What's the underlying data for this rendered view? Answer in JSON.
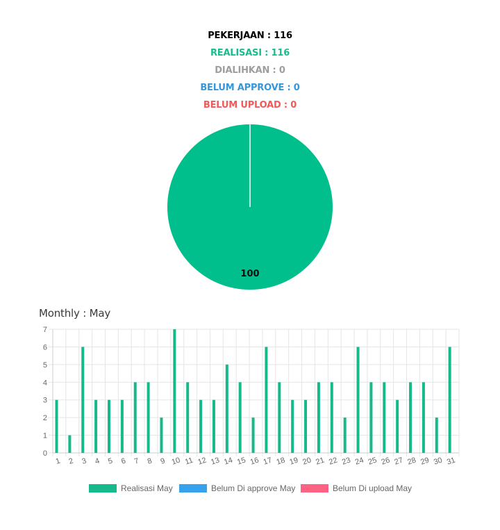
{
  "summary": {
    "pekerjaan": "PEKERJAAN : 116",
    "realisasi": "REALISASI : 116",
    "dialihkan": "DIALIHKAN : 0",
    "belum_approve": "BELUM APPROVE : 0",
    "belum_upload": "BELUM UPLOAD : 0"
  },
  "colors": {
    "pekerjaan": "#000000",
    "realisasi": "#1abc8c",
    "dialihkan": "#9e9e9e",
    "belum_approve": "#3498db",
    "belum_upload": "#f05a5a",
    "pie": "#00bf8c",
    "bar": "#16b98a",
    "approve_swatch": "#36a2eb",
    "upload_swatch": "#ff6384",
    "grid": "#e5e5e5"
  },
  "pie_chart": {
    "type": "pie",
    "slices": [
      {
        "value": 100,
        "label": "100"
      }
    ]
  },
  "monthly": {
    "title": "Monthly : May"
  },
  "chart_data": {
    "type": "bar",
    "categories": [
      "1",
      "2",
      "3",
      "4",
      "5",
      "6",
      "7",
      "8",
      "9",
      "10",
      "11",
      "12",
      "13",
      "14",
      "15",
      "16",
      "17",
      "18",
      "19",
      "20",
      "21",
      "22",
      "23",
      "24",
      "25",
      "26",
      "27",
      "28",
      "29",
      "30",
      "31"
    ],
    "series": [
      {
        "name": "Realisasi May",
        "values": [
          3,
          1,
          6,
          3,
          3,
          3,
          4,
          4,
          2,
          7,
          4,
          3,
          3,
          5,
          4,
          2,
          6,
          4,
          3,
          3,
          4,
          4,
          2,
          6,
          4,
          4,
          3,
          4,
          4,
          2,
          6
        ]
      },
      {
        "name": "Belum Di approve May",
        "values": [
          0,
          0,
          0,
          0,
          0,
          0,
          0,
          0,
          0,
          0,
          0,
          0,
          0,
          0,
          0,
          0,
          0,
          0,
          0,
          0,
          0,
          0,
          0,
          0,
          0,
          0,
          0,
          0,
          0,
          0,
          0
        ]
      },
      {
        "name": "Belum Di upload May",
        "values": [
          0,
          0,
          0,
          0,
          0,
          0,
          0,
          0,
          0,
          0,
          0,
          0,
          0,
          0,
          0,
          0,
          0,
          0,
          0,
          0,
          0,
          0,
          0,
          0,
          0,
          0,
          0,
          0,
          0,
          0,
          0
        ]
      }
    ],
    "yticks": [
      "0",
      "1",
      "2",
      "3",
      "4",
      "5",
      "6",
      "7"
    ],
    "ylim": [
      0,
      7
    ],
    "grid": true,
    "legend_position": "bottom"
  },
  "legend": [
    {
      "label": "Realisasi May"
    },
    {
      "label": "Belum Di approve May"
    },
    {
      "label": "Belum Di upload May"
    }
  ]
}
